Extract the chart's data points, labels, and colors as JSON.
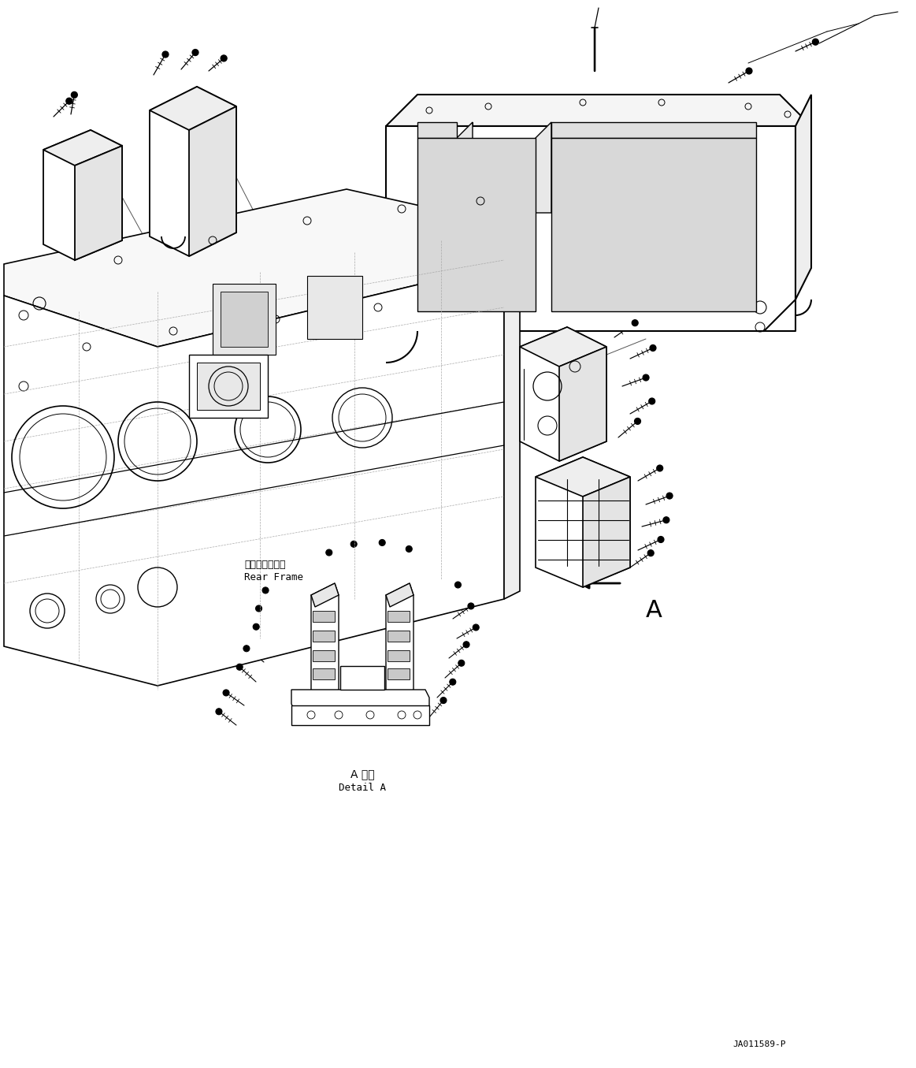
{
  "background_color": "#ffffff",
  "line_color": "#000000",
  "figure_width": 11.63,
  "figure_height": 13.55,
  "dpi": 100,
  "label_rear_frame_jp": "リヤーフレーム",
  "label_rear_frame_en": "Rear Frame",
  "label_detail_jp": "A 詳細",
  "label_detail_en": "Detail A",
  "label_arrow_a": "A",
  "label_code": "JA011589-P",
  "font_size_label": 9,
  "font_size_code": 8,
  "font_size_A": 22
}
